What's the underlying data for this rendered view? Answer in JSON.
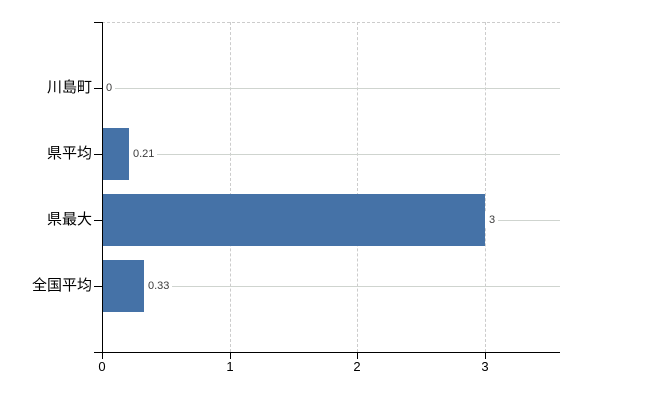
{
  "chart_data": {
    "type": "bar",
    "orientation": "horizontal",
    "title": "",
    "xlabel": "",
    "ylabel": "",
    "categories": [
      "川島町",
      "県平均",
      "県最大",
      "全国平均"
    ],
    "values": [
      0,
      0.21,
      3,
      0.33
    ],
    "value_labels": [
      "0",
      "0.21",
      "3",
      "0.33"
    ],
    "xticks": [
      0,
      1,
      2,
      3
    ],
    "xtick_labels": [
      "0",
      "1",
      "2",
      "3"
    ],
    "xlim": [
      0,
      3.59
    ],
    "grid": true,
    "legend": false,
    "colors": {
      "bar": "#4572a7",
      "grid": "#cccccc",
      "axis": "#000000",
      "value_label_text": "#3c3c3c",
      "background": "#ffffff"
    }
  }
}
